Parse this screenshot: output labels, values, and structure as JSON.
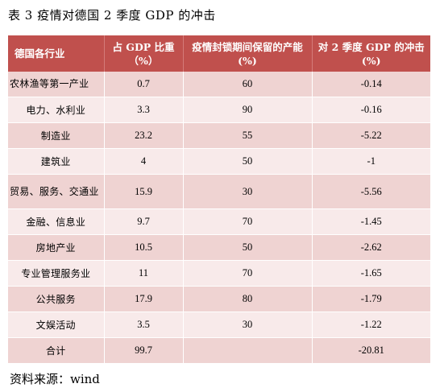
{
  "title": "表 3 疫情对德国 2 季度 GDP 的冲击",
  "source": "资料来源：wind",
  "table": {
    "headers": [
      [
        "德国各行业"
      ],
      [
        "占 GDP 比重",
        "（%）"
      ],
      [
        "疫情封锁期间保留的产能",
        "(%)"
      ],
      [
        "对 2 季度 GDP 的冲击",
        "(%)"
      ]
    ],
    "rows": [
      [
        "农林渔等第一产业",
        "0.7",
        "60",
        "-0.14"
      ],
      [
        "电力、水利业",
        "3.3",
        "90",
        "-0.16"
      ],
      [
        "制造业",
        "23.2",
        "55",
        "-5.22"
      ],
      [
        "建筑业",
        "4",
        "50",
        "-1"
      ],
      [
        "贸易、服务、交通业",
        "15.9",
        "30",
        "-5.56"
      ],
      [
        "金融、信息业",
        "9.7",
        "70",
        "-1.45"
      ],
      [
        "房地产业",
        "10.5",
        "50",
        "-2.62"
      ],
      [
        "专业管理服务业",
        "11",
        "70",
        "-1.65"
      ],
      [
        "公共服务",
        "17.9",
        "80",
        "-1.79"
      ],
      [
        "文娱活动",
        "3.5",
        "30",
        "-1.22"
      ],
      [
        "合计",
        "99.7",
        "",
        "-20.81"
      ]
    ]
  }
}
